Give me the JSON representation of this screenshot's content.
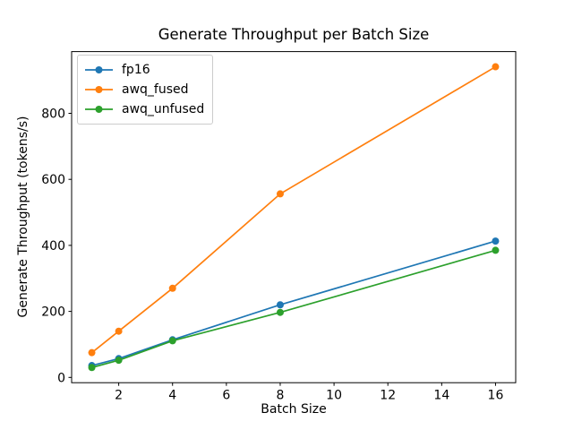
{
  "chart_data": {
    "type": "line",
    "title": "Generate Throughput per Batch Size",
    "xlabel": "Batch Size",
    "ylabel": "Generate Throughput (tokens/s)",
    "x": [
      1,
      2,
      4,
      8,
      16
    ],
    "series": [
      {
        "name": "fp16",
        "color": "#1f77b4",
        "values": [
          36,
          57,
          114,
          220,
          413
        ]
      },
      {
        "name": "awq_fused",
        "color": "#ff7f0e",
        "values": [
          75,
          140,
          270,
          556,
          941
        ]
      },
      {
        "name": "awq_unfused",
        "color": "#2ca02c",
        "values": [
          30,
          52,
          111,
          197,
          385
        ]
      }
    ],
    "x_ticks": [
      2,
      4,
      6,
      8,
      10,
      12,
      14,
      16
    ],
    "y_ticks": [
      0,
      200,
      400,
      600,
      800
    ],
    "xlim": [
      0.25,
      16.75
    ],
    "ylim": [
      -16,
      987
    ],
    "legend_position": "upper left",
    "grid": false,
    "marker": "o",
    "background_color": "#ffffff",
    "spine_color": "#000000"
  }
}
